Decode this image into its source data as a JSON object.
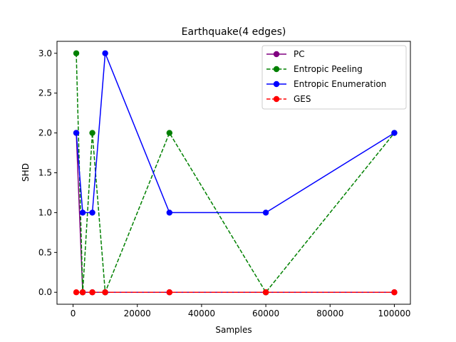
{
  "chart_data": {
    "type": "line",
    "title": "Earthquake(4 edges)",
    "xlabel": "Samples",
    "ylabel": "SHD",
    "xlim": [
      -5000,
      105000
    ],
    "ylim": [
      -0.15,
      3.15
    ],
    "xticks": [
      0,
      20000,
      40000,
      60000,
      80000,
      100000
    ],
    "yticks": [
      0.0,
      0.5,
      1.0,
      1.5,
      2.0,
      2.5,
      3.0
    ],
    "xtick_labels": [
      "0",
      "20000",
      "40000",
      "60000",
      "80000",
      "100000"
    ],
    "ytick_labels": [
      "0.0",
      "0.5",
      "1.0",
      "1.5",
      "2.0",
      "2.5",
      "3.0"
    ],
    "grid": false,
    "legend_position": "top-right",
    "series": [
      {
        "name": "PC",
        "color": "#800080",
        "linestyle": "solid",
        "x": [
          1000,
          3000,
          6000,
          10000,
          30000,
          60000,
          100000
        ],
        "y": [
          2,
          0,
          0,
          0,
          0,
          0,
          0
        ]
      },
      {
        "name": "Entropic Peeling",
        "color": "#008000",
        "linestyle": "dashed",
        "x": [
          1000,
          3000,
          6000,
          10000,
          30000,
          60000,
          100000
        ],
        "y": [
          3,
          0,
          2,
          0,
          2,
          0,
          2
        ]
      },
      {
        "name": "Entropic Enumeration",
        "color": "#0000ff",
        "linestyle": "solid",
        "x": [
          1000,
          3000,
          6000,
          10000,
          30000,
          60000,
          100000
        ],
        "y": [
          2,
          1,
          1,
          3,
          1,
          1,
          2
        ]
      },
      {
        "name": "GES",
        "color": "#ff0000",
        "linestyle": "dashed",
        "x": [
          1000,
          3000,
          6000,
          10000,
          30000,
          60000,
          100000
        ],
        "y": [
          0,
          0,
          0,
          0,
          0,
          0,
          0
        ]
      }
    ]
  }
}
